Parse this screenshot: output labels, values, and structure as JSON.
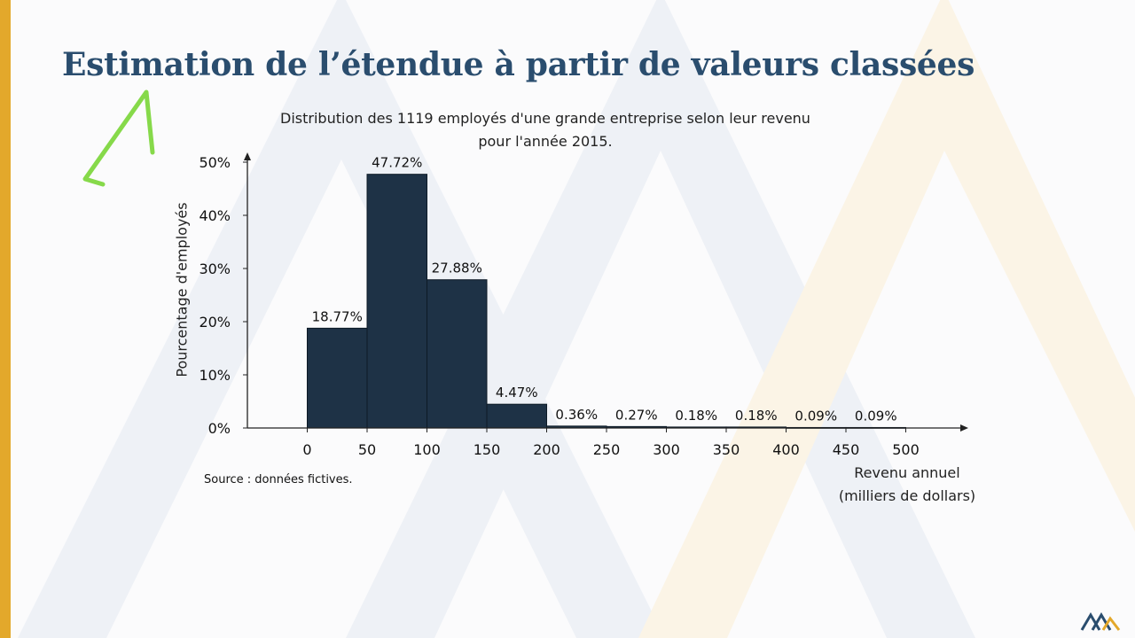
{
  "slide": {
    "title": "Estimation de l’étendue à partir de valeurs classées",
    "source": "Source : données fictives.",
    "colors": {
      "accent_bar": "#e3a82b",
      "title": "#2a4d6e",
      "bar_fill": "#1e3246",
      "annotation": "#86d94a"
    }
  },
  "chart_data": {
    "type": "bar",
    "title_lines": [
      "Distribution des 1119 employés d'une grande entreprise selon leur revenu",
      "pour l'année 2015."
    ],
    "xlabel_lines": [
      "Revenu annuel",
      "(milliers de dollars)"
    ],
    "ylabel": "Pourcentage d'employés",
    "bins": [
      {
        "from": 0,
        "to": 50,
        "value": 18.77,
        "label": "18.77%"
      },
      {
        "from": 50,
        "to": 100,
        "value": 47.72,
        "label": "47.72%"
      },
      {
        "from": 100,
        "to": 150,
        "value": 27.88,
        "label": "27.88%"
      },
      {
        "from": 150,
        "to": 200,
        "value": 4.47,
        "label": "4.47%"
      },
      {
        "from": 200,
        "to": 250,
        "value": 0.36,
        "label": "0.36%"
      },
      {
        "from": 250,
        "to": 300,
        "value": 0.27,
        "label": "0.27%"
      },
      {
        "from": 300,
        "to": 350,
        "value": 0.18,
        "label": "0.18%"
      },
      {
        "from": 350,
        "to": 400,
        "value": 0.18,
        "label": "0.18%"
      },
      {
        "from": 400,
        "to": 450,
        "value": 0.09,
        "label": "0.09%"
      },
      {
        "from": 450,
        "to": 500,
        "value": 0.09,
        "label": "0.09%"
      }
    ],
    "xticks": [
      0,
      50,
      100,
      150,
      200,
      250,
      300,
      350,
      400,
      450,
      500
    ],
    "xtick_labels": [
      "0",
      "50",
      "100",
      "150",
      "200",
      "250",
      "300",
      "350",
      "400",
      "450",
      "500"
    ],
    "yticks": [
      0,
      10,
      20,
      30,
      40,
      50
    ],
    "ytick_labels": [
      "0%",
      "10%",
      "20%",
      "30%",
      "40%",
      "50%"
    ],
    "xlim": [
      -50,
      550
    ],
    "ylim": [
      0,
      50
    ]
  }
}
